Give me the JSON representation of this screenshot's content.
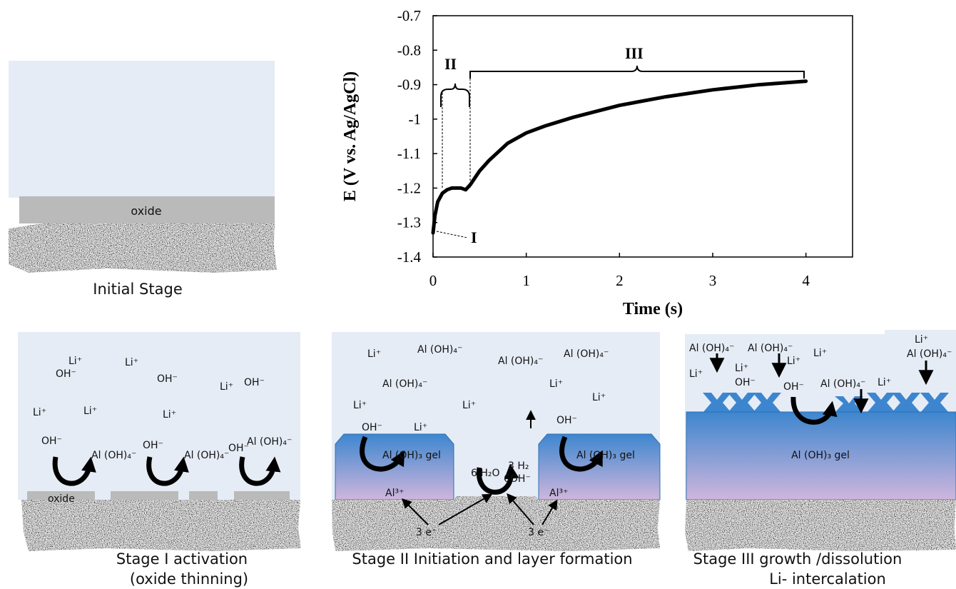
{
  "chart_data": {
    "type": "line",
    "y_label": "E (V vs. Ag/AgCl)",
    "x_label": "Time (s)",
    "x": [
      0,
      0.02,
      0.05,
      0.1,
      0.15,
      0.2,
      0.3,
      0.35,
      0.4,
      0.5,
      0.6,
      0.8,
      1.0,
      1.2,
      1.5,
      2.0,
      2.5,
      3.0,
      3.5,
      4.0
    ],
    "values": [
      -1.33,
      -1.28,
      -1.24,
      -1.215,
      -1.205,
      -1.2,
      -1.2,
      -1.205,
      -1.19,
      -1.15,
      -1.12,
      -1.07,
      -1.04,
      -1.02,
      -0.995,
      -0.96,
      -0.935,
      -0.915,
      -0.9,
      -0.89
    ],
    "color": "#000000",
    "xlim": [
      0,
      4.5
    ],
    "xticks": [
      0,
      1,
      2,
      3,
      4
    ],
    "ylim": [
      -1.4,
      -0.7
    ],
    "yticks": [
      -0.7,
      -0.8,
      -0.9,
      -1,
      -1.1,
      -1.2,
      -1.3,
      -1.4
    ],
    "grid": false,
    "annotations": [
      "I",
      "II",
      "III"
    ]
  },
  "panels": [
    {
      "caption": [
        "Initial Stage"
      ],
      "labels": [
        "oxide"
      ]
    },
    {
      "caption": [
        "Stage I activation",
        "(oxide thinning)"
      ],
      "labels": [
        "Li⁺",
        "OH⁻",
        "Li⁺",
        "OH⁻",
        "Li⁺",
        "OH⁻",
        "Li⁺",
        "Li⁺",
        "Li⁺",
        "OH⁻",
        "Al (OH)₄⁻",
        "OH⁻",
        "Al (OH)₄⁻",
        "OH⁻",
        "Al (OH)₄⁻",
        "oxide"
      ]
    },
    {
      "caption": [
        "Stage II Initiation and layer formation"
      ],
      "labels": [
        "Li⁺",
        "Al (OH)₄⁻",
        "Al (OH)₄⁻",
        "Al (OH)₄⁻",
        "Al (OH)₄⁻",
        "Li⁺",
        "Li⁺",
        "Li⁺",
        "Li⁺",
        "Li⁺",
        "OH⁻",
        "OH⁻",
        "Al (OH)₃ gel",
        "Al (OH)₃ gel",
        "6 H₂O",
        "3 H₂",
        "6OH⁻",
        "Al³⁺",
        "Al³⁺",
        "3 e⁻",
        "3 e⁻"
      ]
    },
    {
      "caption": [
        "Stage III  growth /dissolution",
        "Li- intercalation"
      ],
      "labels": [
        "Al (OH)₄⁻",
        "Al (OH)₄⁻",
        "Li⁺",
        "Li⁺",
        "Li⁺",
        "Al (OH)₄⁻",
        "Li⁺",
        "Li⁺",
        "OH⁻",
        "OH⁻",
        "Al (OH)₄⁻",
        "Li⁺",
        "Al (OH)₃ gel"
      ]
    }
  ]
}
